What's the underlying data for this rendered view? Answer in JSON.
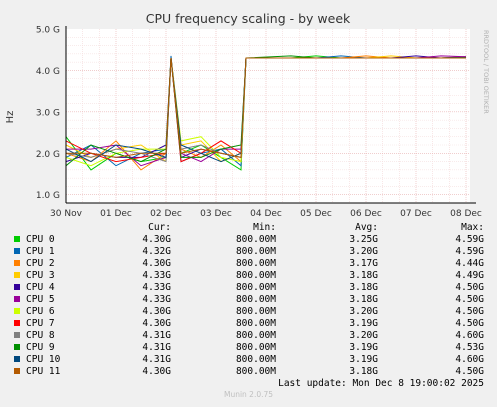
{
  "chart_data": {
    "type": "line",
    "title": "CPU frequency scaling - by week",
    "ylabel": "Hz",
    "side_label": "RRDTOOL / TOBI OETIKER",
    "y_ticks": [
      "1.0 G",
      "2.0 G",
      "3.0 G",
      "4.0 G",
      "5.0 G"
    ],
    "y_tick_values": [
      1.0,
      2.0,
      3.0,
      4.0,
      5.0
    ],
    "ylim": [
      0.8,
      5.0
    ],
    "x_ticks": [
      "30 Nov",
      "01 Dec",
      "02 Dec",
      "03 Dec",
      "04 Dec",
      "05 Dec",
      "06 Dec",
      "07 Dec",
      "08 Dec"
    ],
    "xlim": [
      0,
      8.08
    ],
    "grid": true,
    "series": [
      {
        "name": "CPU 0",
        "color": "#00cc00",
        "values": [
          [
            0,
            2.4
          ],
          [
            0.5,
            1.6
          ],
          [
            1,
            2.0
          ],
          [
            1.5,
            1.8
          ],
          [
            2,
            1.9
          ],
          [
            2.1,
            4.3
          ],
          [
            2.3,
            2.0
          ],
          [
            2.7,
            2.2
          ],
          [
            3.1,
            1.9
          ],
          [
            3.5,
            1.6
          ],
          [
            3.6,
            4.3
          ],
          [
            4.5,
            4.3
          ],
          [
            5,
            4.35
          ],
          [
            5.5,
            4.3
          ],
          [
            6,
            4.3
          ],
          [
            6.5,
            4.3
          ],
          [
            7,
            4.3
          ],
          [
            7.5,
            4.3
          ],
          [
            8.0,
            4.3
          ]
        ]
      },
      {
        "name": "CPU 1",
        "color": "#0066b3",
        "values": [
          [
            0,
            1.9
          ],
          [
            0.5,
            2.2
          ],
          [
            1,
            1.7
          ],
          [
            1.5,
            2.0
          ],
          [
            2,
            2.1
          ],
          [
            2.1,
            4.35
          ],
          [
            2.3,
            1.8
          ],
          [
            2.7,
            2.0
          ],
          [
            3.1,
            2.1
          ],
          [
            3.5,
            1.7
          ],
          [
            3.6,
            4.3
          ],
          [
            4.5,
            4.3
          ],
          [
            5,
            4.3
          ],
          [
            5.5,
            4.35
          ],
          [
            6,
            4.3
          ],
          [
            6.5,
            4.3
          ],
          [
            7,
            4.3
          ],
          [
            7.5,
            4.3
          ],
          [
            8.0,
            4.32
          ]
        ]
      },
      {
        "name": "CPU 2",
        "color": "#ff8000",
        "values": [
          [
            0,
            2.0
          ],
          [
            0.5,
            1.8
          ],
          [
            1,
            2.3
          ],
          [
            1.5,
            1.6
          ],
          [
            2,
            2.0
          ],
          [
            2.1,
            4.3
          ],
          [
            2.3,
            2.1
          ],
          [
            2.7,
            1.9
          ],
          [
            3.1,
            2.2
          ],
          [
            3.5,
            1.8
          ],
          [
            3.6,
            4.3
          ],
          [
            4.5,
            4.3
          ],
          [
            5,
            4.3
          ],
          [
            5.5,
            4.3
          ],
          [
            6,
            4.35
          ],
          [
            6.5,
            4.3
          ],
          [
            7,
            4.3
          ],
          [
            7.5,
            4.3
          ],
          [
            8.0,
            4.3
          ]
        ]
      },
      {
        "name": "CPU 3",
        "color": "#ffcc00",
        "values": [
          [
            0,
            2.2
          ],
          [
            0.5,
            1.9
          ],
          [
            1,
            2.1
          ],
          [
            1.5,
            2.2
          ],
          [
            2,
            1.8
          ],
          [
            2.1,
            4.3
          ],
          [
            2.3,
            2.2
          ],
          [
            2.7,
            2.3
          ],
          [
            3.1,
            1.8
          ],
          [
            3.5,
            2.0
          ],
          [
            3.6,
            4.3
          ],
          [
            4.5,
            4.3
          ],
          [
            5,
            4.3
          ],
          [
            5.5,
            4.3
          ],
          [
            6,
            4.3
          ],
          [
            6.5,
            4.35
          ],
          [
            7,
            4.3
          ],
          [
            7.5,
            4.3
          ],
          [
            8.0,
            4.33
          ]
        ]
      },
      {
        "name": "CPU 4",
        "color": "#330099",
        "values": [
          [
            0,
            1.8
          ],
          [
            0.5,
            2.0
          ],
          [
            1,
            1.9
          ],
          [
            1.5,
            1.9
          ],
          [
            2,
            2.2
          ],
          [
            2.1,
            4.3
          ],
          [
            2.3,
            1.9
          ],
          [
            2.7,
            2.1
          ],
          [
            3.1,
            2.0
          ],
          [
            3.5,
            1.9
          ],
          [
            3.6,
            4.3
          ],
          [
            4.5,
            4.3
          ],
          [
            5,
            4.3
          ],
          [
            5.5,
            4.3
          ],
          [
            6,
            4.3
          ],
          [
            6.5,
            4.3
          ],
          [
            7,
            4.35
          ],
          [
            7.5,
            4.3
          ],
          [
            8.0,
            4.33
          ]
        ]
      },
      {
        "name": "CPU 5",
        "color": "#990099",
        "values": [
          [
            0,
            2.1
          ],
          [
            0.5,
            2.1
          ],
          [
            1,
            2.2
          ],
          [
            1.5,
            1.7
          ],
          [
            2,
            1.9
          ],
          [
            2.1,
            4.3
          ],
          [
            2.3,
            2.0
          ],
          [
            2.7,
            1.8
          ],
          [
            3.1,
            2.1
          ],
          [
            3.5,
            2.1
          ],
          [
            3.6,
            4.3
          ],
          [
            4.5,
            4.3
          ],
          [
            5,
            4.3
          ],
          [
            5.5,
            4.3
          ],
          [
            6,
            4.3
          ],
          [
            6.5,
            4.3
          ],
          [
            7,
            4.3
          ],
          [
            7.5,
            4.35
          ],
          [
            8.0,
            4.33
          ]
        ]
      },
      {
        "name": "CPU 6",
        "color": "#ccff00",
        "values": [
          [
            0,
            1.9
          ],
          [
            0.5,
            1.7
          ],
          [
            1,
            2.0
          ],
          [
            1.5,
            2.1
          ],
          [
            2,
            2.1
          ],
          [
            2.1,
            4.3
          ],
          [
            2.3,
            2.3
          ],
          [
            2.7,
            2.4
          ],
          [
            3.1,
            1.9
          ],
          [
            3.5,
            1.8
          ],
          [
            3.6,
            4.3
          ],
          [
            4.5,
            4.3
          ],
          [
            5,
            4.3
          ],
          [
            5.5,
            4.3
          ],
          [
            6,
            4.3
          ],
          [
            6.5,
            4.3
          ],
          [
            7,
            4.3
          ],
          [
            7.5,
            4.3
          ],
          [
            8.0,
            4.3
          ]
        ]
      },
      {
        "name": "CPU 7",
        "color": "#ff0000",
        "values": [
          [
            0,
            2.3
          ],
          [
            0.5,
            2.0
          ],
          [
            1,
            1.8
          ],
          [
            1.5,
            1.9
          ],
          [
            2,
            2.0
          ],
          [
            2.1,
            4.3
          ],
          [
            2.3,
            1.8
          ],
          [
            2.7,
            2.0
          ],
          [
            3.1,
            2.3
          ],
          [
            3.5,
            2.0
          ],
          [
            3.6,
            4.3
          ],
          [
            4.5,
            4.3
          ],
          [
            5,
            4.3
          ],
          [
            5.5,
            4.3
          ],
          [
            6,
            4.3
          ],
          [
            6.5,
            4.3
          ],
          [
            7,
            4.3
          ],
          [
            7.5,
            4.3
          ],
          [
            8.0,
            4.3
          ]
        ]
      },
      {
        "name": "CPU 8",
        "color": "#808080",
        "values": [
          [
            0,
            2.0
          ],
          [
            0.5,
            1.9
          ],
          [
            1,
            2.1
          ],
          [
            1.5,
            2.0
          ],
          [
            2,
            1.8
          ],
          [
            2.1,
            4.3
          ],
          [
            2.3,
            2.1
          ],
          [
            2.7,
            2.2
          ],
          [
            3.1,
            2.0
          ],
          [
            3.5,
            1.9
          ],
          [
            3.6,
            4.3
          ],
          [
            4.5,
            4.3
          ],
          [
            5,
            4.3
          ],
          [
            5.5,
            4.3
          ],
          [
            6,
            4.3
          ],
          [
            6.5,
            4.3
          ],
          [
            7,
            4.3
          ],
          [
            7.5,
            4.3
          ],
          [
            8.0,
            4.31
          ]
        ]
      },
      {
        "name": "CPU 9",
        "color": "#008f00",
        "values": [
          [
            0,
            1.7
          ],
          [
            0.5,
            2.2
          ],
          [
            1,
            2.0
          ],
          [
            1.5,
            1.8
          ],
          [
            2,
            2.1
          ],
          [
            2.1,
            4.3
          ],
          [
            2.3,
            1.9
          ],
          [
            2.7,
            1.9
          ],
          [
            3.1,
            2.1
          ],
          [
            3.5,
            2.2
          ],
          [
            3.6,
            4.3
          ],
          [
            4.5,
            4.35
          ],
          [
            5,
            4.3
          ],
          [
            5.5,
            4.3
          ],
          [
            6,
            4.3
          ],
          [
            6.5,
            4.3
          ],
          [
            7,
            4.3
          ],
          [
            7.5,
            4.3
          ],
          [
            8.0,
            4.31
          ]
        ]
      },
      {
        "name": "CPU 10",
        "color": "#00487d",
        "values": [
          [
            0,
            2.1
          ],
          [
            0.5,
            1.8
          ],
          [
            1,
            2.2
          ],
          [
            1.5,
            2.1
          ],
          [
            2,
            1.9
          ],
          [
            2.1,
            4.3
          ],
          [
            2.3,
            2.2
          ],
          [
            2.7,
            2.0
          ],
          [
            3.1,
            1.8
          ],
          [
            3.5,
            2.0
          ],
          [
            3.6,
            4.3
          ],
          [
            4.5,
            4.3
          ],
          [
            5,
            4.3
          ],
          [
            5.5,
            4.3
          ],
          [
            6,
            4.3
          ],
          [
            6.5,
            4.3
          ],
          [
            7,
            4.3
          ],
          [
            7.5,
            4.3
          ],
          [
            8.0,
            4.31
          ]
        ]
      },
      {
        "name": "CPU 11",
        "color": "#b35a00",
        "values": [
          [
            0,
            2.0
          ],
          [
            0.5,
            2.0
          ],
          [
            1,
            1.9
          ],
          [
            1.5,
            2.0
          ],
          [
            2,
            2.0
          ],
          [
            2.1,
            4.3
          ],
          [
            2.3,
            2.0
          ],
          [
            2.7,
            2.1
          ],
          [
            3.1,
            2.0
          ],
          [
            3.5,
            1.9
          ],
          [
            3.6,
            4.3
          ],
          [
            4.5,
            4.3
          ],
          [
            5,
            4.3
          ],
          [
            5.5,
            4.3
          ],
          [
            6,
            4.3
          ],
          [
            6.5,
            4.3
          ],
          [
            7,
            4.3
          ],
          [
            7.5,
            4.3
          ],
          [
            8.0,
            4.3
          ]
        ]
      }
    ]
  },
  "legend": {
    "headers": {
      "cur": "Cur:",
      "min": "Min:",
      "avg": "Avg:",
      "max": "Max:"
    },
    "rows": [
      {
        "name": "CPU 0",
        "color": "#00cc00",
        "cur": "4.30G",
        "min": "800.00M",
        "avg": "3.25G",
        "max": "4.59G"
      },
      {
        "name": "CPU 1",
        "color": "#0066b3",
        "cur": "4.32G",
        "min": "800.00M",
        "avg": "3.20G",
        "max": "4.59G"
      },
      {
        "name": "CPU 2",
        "color": "#ff8000",
        "cur": "4.30G",
        "min": "800.00M",
        "avg": "3.17G",
        "max": "4.44G"
      },
      {
        "name": "CPU 3",
        "color": "#ffcc00",
        "cur": "4.33G",
        "min": "800.00M",
        "avg": "3.18G",
        "max": "4.49G"
      },
      {
        "name": "CPU 4",
        "color": "#330099",
        "cur": "4.33G",
        "min": "800.00M",
        "avg": "3.18G",
        "max": "4.50G"
      },
      {
        "name": "CPU 5",
        "color": "#990099",
        "cur": "4.33G",
        "min": "800.00M",
        "avg": "3.18G",
        "max": "4.50G"
      },
      {
        "name": "CPU 6",
        "color": "#ccff00",
        "cur": "4.30G",
        "min": "800.00M",
        "avg": "3.20G",
        "max": "4.50G"
      },
      {
        "name": "CPU 7",
        "color": "#ff0000",
        "cur": "4.30G",
        "min": "800.00M",
        "avg": "3.19G",
        "max": "4.50G"
      },
      {
        "name": "CPU 8",
        "color": "#808080",
        "cur": "4.31G",
        "min": "800.00M",
        "avg": "3.20G",
        "max": "4.60G"
      },
      {
        "name": "CPU 9",
        "color": "#008f00",
        "cur": "4.31G",
        "min": "800.00M",
        "avg": "3.19G",
        "max": "4.53G"
      },
      {
        "name": "CPU 10",
        "color": "#00487d",
        "cur": "4.31G",
        "min": "800.00M",
        "avg": "3.19G",
        "max": "4.60G"
      },
      {
        "name": "CPU 11",
        "color": "#b35a00",
        "cur": "4.30G",
        "min": "800.00M",
        "avg": "3.18G",
        "max": "4.50G"
      }
    ]
  },
  "last_update": "Last update: Mon Dec  8 19:00:02 2025",
  "footer": "Munin 2.0.75"
}
